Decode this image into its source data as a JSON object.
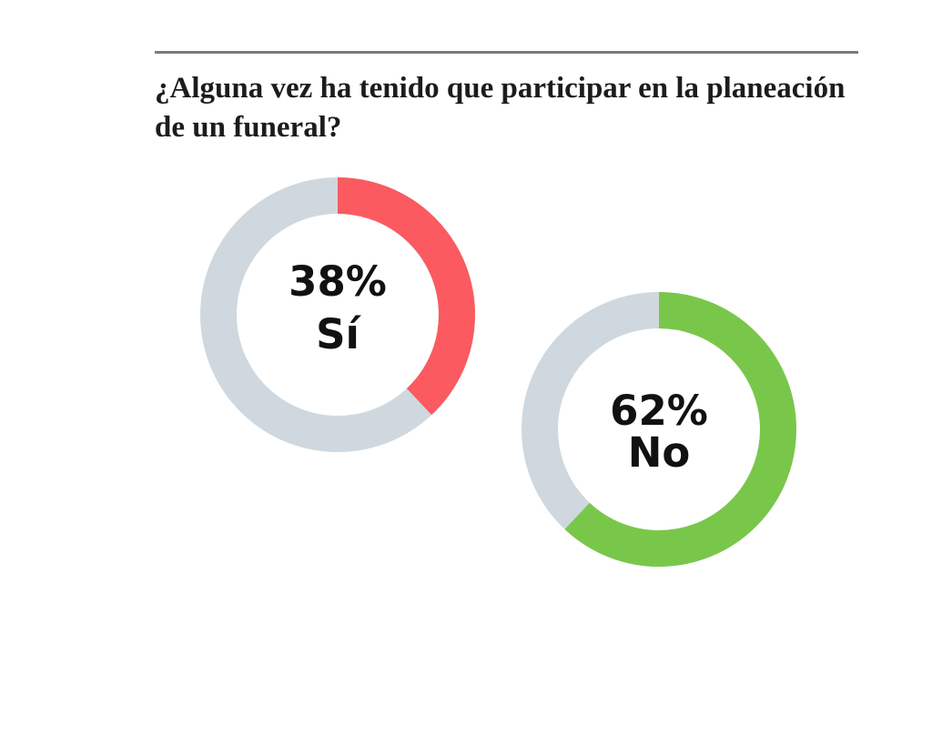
{
  "title": "¿Alguna vez ha tenido que participar en la planeación de un funeral?",
  "colors": {
    "track": "#cfd8de",
    "si": "#fa5a60",
    "no": "#79c74a",
    "text": "#111111",
    "rule": "#7a7a7a"
  },
  "chart_data": [
    {
      "type": "pie",
      "variant": "donut",
      "value": 38,
      "display_value": "38%",
      "label": "Sí",
      "color": "#fa5a60",
      "remainder_color": "#cfd8de"
    },
    {
      "type": "pie",
      "variant": "donut",
      "value": 62,
      "display_value": "62%",
      "label": "No",
      "color": "#79c74a",
      "remainder_color": "#cfd8de"
    }
  ]
}
